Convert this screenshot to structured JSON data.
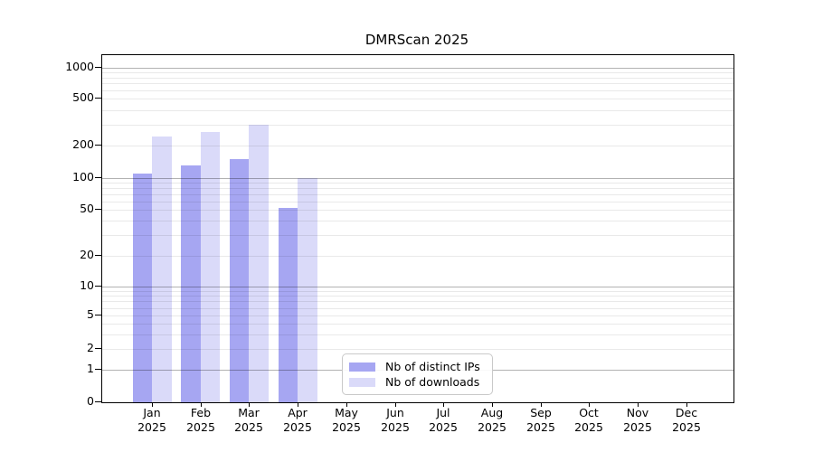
{
  "chart_data": {
    "type": "bar",
    "title": "DMRScan 2025",
    "categories": [
      "Jan",
      "Feb",
      "Mar",
      "Apr",
      "May",
      "Jun",
      "Jul",
      "Aug",
      "Sep",
      "Oct",
      "Nov",
      "Dec"
    ],
    "x_tick_second_line": "2025",
    "series": [
      {
        "name": "Nb of distinct IPs",
        "color": "#a6a6f2",
        "values": [
          110,
          130,
          150,
          52,
          null,
          null,
          null,
          null,
          null,
          null,
          null,
          null
        ]
      },
      {
        "name": "Nb of downloads",
        "color": "#dadaf9",
        "values": [
          240,
          260,
          300,
          100,
          null,
          null,
          null,
          null,
          null,
          null,
          null,
          null
        ]
      }
    ],
    "yscale": "symlog",
    "y_ticks": [
      0,
      1,
      2,
      5,
      10,
      20,
      50,
      100,
      200,
      500,
      1000
    ],
    "ylim": [
      0,
      1300
    ],
    "grid": "horizontal log minor + major, drawn over bars",
    "legend_position": "lower-center-inside",
    "colors": {
      "major_gridline": "#b3b3b3",
      "minor_gridline": "#ebebeb",
      "axis": "#000000",
      "background": "#ffffff"
    }
  }
}
